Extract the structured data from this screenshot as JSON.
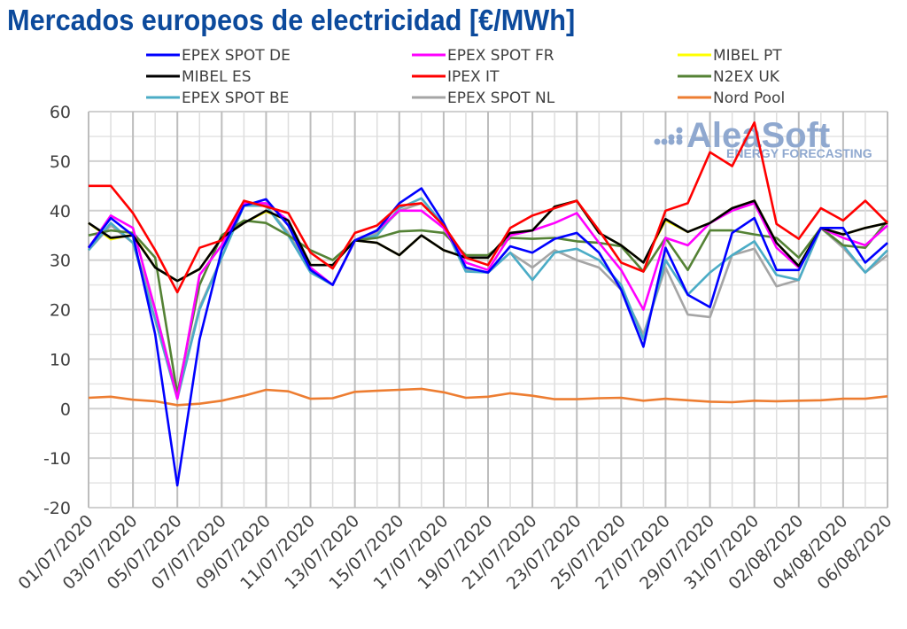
{
  "title": "Mercados europeos de electricidad [€/MWh]",
  "watermark": {
    "brand": "AleaSoft",
    "tagline": "ENERGY FORECASTING",
    "color": "#8fa8cf"
  },
  "chart_data": {
    "type": "line",
    "title": "Mercados europeos de electricidad [€/MWh]",
    "xlabel": "",
    "ylabel": "€/MWh",
    "ylim": [
      -20,
      60
    ],
    "yticks": [
      -20,
      -10,
      0,
      10,
      20,
      30,
      40,
      50,
      60
    ],
    "grid": true,
    "legend_position": "top",
    "x": [
      "01/07/2020",
      "02/07/2020",
      "03/07/2020",
      "04/07/2020",
      "05/07/2020",
      "06/07/2020",
      "07/07/2020",
      "08/07/2020",
      "09/07/2020",
      "10/07/2020",
      "11/07/2020",
      "12/07/2020",
      "13/07/2020",
      "14/07/2020",
      "15/07/2020",
      "16/07/2020",
      "17/07/2020",
      "18/07/2020",
      "19/07/2020",
      "20/07/2020",
      "21/07/2020",
      "22/07/2020",
      "23/07/2020",
      "24/07/2020",
      "25/07/2020",
      "26/07/2020",
      "27/07/2020",
      "28/07/2020",
      "29/07/2020",
      "30/07/2020",
      "31/07/2020",
      "01/08/2020",
      "02/08/2020",
      "03/08/2020",
      "04/08/2020",
      "05/08/2020",
      "06/08/2020"
    ],
    "xtick_labels": [
      "01/07/2020",
      "03/07/2020",
      "05/07/2020",
      "07/07/2020",
      "09/07/2020",
      "11/07/2020",
      "13/07/2020",
      "15/07/2020",
      "17/07/2020",
      "19/07/2020",
      "21/07/2020",
      "23/07/2020",
      "25/07/2020",
      "27/07/2020",
      "29/07/2020",
      "31/07/2020",
      "02/08/2020",
      "04/08/2020",
      "06/08/2020"
    ],
    "series": [
      {
        "name": "EPEX SPOT DE",
        "color": "#0000ff",
        "values": [
          32.5,
          38.5,
          35.0,
          15.0,
          -15.5,
          14.0,
          32.0,
          41.0,
          42.3,
          37.0,
          28.0,
          25.0,
          34.0,
          36.0,
          41.5,
          44.5,
          37.5,
          28.5,
          27.5,
          32.8,
          31.5,
          34.3,
          35.5,
          31.5,
          24.0,
          12.5,
          32.5,
          23.0,
          20.5,
          35.5,
          38.5,
          28.0,
          28.0,
          36.5,
          36.5,
          29.5,
          33.5
        ]
      },
      {
        "name": "EPEX SPOT FR",
        "color": "#ff00ff",
        "values": [
          32.5,
          39.0,
          36.5,
          20.0,
          2.0,
          27.0,
          33.0,
          41.5,
          41.5,
          38.0,
          28.5,
          25.0,
          34.0,
          36.0,
          40.0,
          40.0,
          36.5,
          29.5,
          28.0,
          35.0,
          36.0,
          37.5,
          39.5,
          33.5,
          28.0,
          20.0,
          34.5,
          33.0,
          37.5,
          40.0,
          41.5,
          32.5,
          28.5,
          36.5,
          34.5,
          33.0,
          37.0
        ]
      },
      {
        "name": "MIBEL PT",
        "color": "#ffff00",
        "values": [
          37.5,
          34.2,
          35.2,
          28.5,
          25.8,
          28.2,
          34.5,
          37.5,
          39.8,
          38.0,
          29.0,
          29.0,
          34.0,
          33.5,
          31.0,
          35.0,
          32.0,
          30.5,
          30.5,
          35.5,
          36.0,
          40.8,
          42.0,
          35.5,
          33.0,
          29.5,
          38.0,
          35.7,
          37.5,
          40.5,
          42.0,
          33.5,
          28.8,
          36.5,
          35.2,
          36.5,
          37.5
        ]
      },
      {
        "name": "MIBEL ES",
        "color": "#000000",
        "values": [
          37.5,
          34.5,
          35.0,
          28.5,
          25.8,
          28.2,
          34.5,
          37.5,
          40.0,
          38.0,
          29.0,
          29.0,
          34.0,
          33.5,
          31.0,
          35.0,
          32.0,
          30.5,
          30.5,
          35.5,
          36.0,
          40.8,
          42.0,
          35.5,
          33.0,
          29.5,
          38.3,
          35.7,
          37.5,
          40.5,
          42.0,
          33.5,
          28.8,
          36.5,
          35.2,
          36.5,
          37.5
        ]
      },
      {
        "name": "IPEX IT",
        "color": "#ff0000",
        "values": [
          45.0,
          45.0,
          39.5,
          32.0,
          23.5,
          32.5,
          34.0,
          42.0,
          40.8,
          39.5,
          31.5,
          28.3,
          35.5,
          37.0,
          41.0,
          41.5,
          37.0,
          30.5,
          29.0,
          36.5,
          39.0,
          40.5,
          42.0,
          36.0,
          29.5,
          27.7,
          40.0,
          41.5,
          51.8,
          49.0,
          57.8,
          37.3,
          34.3,
          40.5,
          38.0,
          42.0,
          37.5
        ]
      },
      {
        "name": "N2EX UK",
        "color": "#548235",
        "values": [
          35.0,
          36.0,
          35.5,
          30.5,
          3.0,
          25.0,
          35.0,
          38.0,
          37.5,
          35.0,
          32.0,
          30.0,
          34.0,
          34.5,
          35.8,
          36.0,
          35.5,
          31.0,
          31.0,
          34.5,
          34.3,
          34.5,
          33.8,
          33.5,
          32.8,
          27.7,
          34.5,
          28.0,
          36.0,
          36.0,
          35.2,
          34.5,
          30.5,
          36.5,
          33.0,
          32.5,
          38.0
        ]
      },
      {
        "name": "EPEX SPOT BE",
        "color": "#4bacc6",
        "values": [
          32.0,
          37.5,
          33.5,
          18.0,
          2.0,
          20.0,
          30.5,
          41.0,
          41.0,
          35.0,
          27.5,
          25.0,
          34.0,
          35.0,
          40.5,
          42.5,
          37.0,
          27.7,
          27.5,
          31.5,
          26.0,
          31.5,
          32.3,
          30.0,
          25.0,
          14.0,
          30.0,
          23.0,
          27.5,
          31.0,
          33.8,
          27.0,
          26.0,
          36.5,
          33.0,
          27.5,
          32.0
        ]
      },
      {
        "name": "EPEX SPOT NL",
        "color": "#a5a5a5",
        "values": [
          32.0,
          37.0,
          33.5,
          20.0,
          2.5,
          20.5,
          30.5,
          41.5,
          41.0,
          35.5,
          28.0,
          25.0,
          34.0,
          35.5,
          40.0,
          41.5,
          37.0,
          28.0,
          27.5,
          31.5,
          28.5,
          32.0,
          30.0,
          28.5,
          24.0,
          15.0,
          28.5,
          19.0,
          18.5,
          31.0,
          32.3,
          24.7,
          26.0,
          36.5,
          32.5,
          27.5,
          31.0
        ]
      },
      {
        "name": "Nord Pool",
        "color": "#ed7d31",
        "values": [
          2.2,
          2.4,
          1.8,
          1.5,
          0.7,
          1.0,
          1.6,
          2.6,
          3.8,
          3.5,
          2.0,
          2.1,
          3.4,
          3.6,
          3.8,
          4.0,
          3.3,
          2.2,
          2.4,
          3.1,
          2.6,
          1.9,
          1.9,
          2.1,
          2.2,
          1.6,
          2.0,
          1.7,
          1.4,
          1.3,
          1.6,
          1.5,
          1.6,
          1.7,
          2.0,
          2.0,
          2.5
        ]
      }
    ]
  }
}
